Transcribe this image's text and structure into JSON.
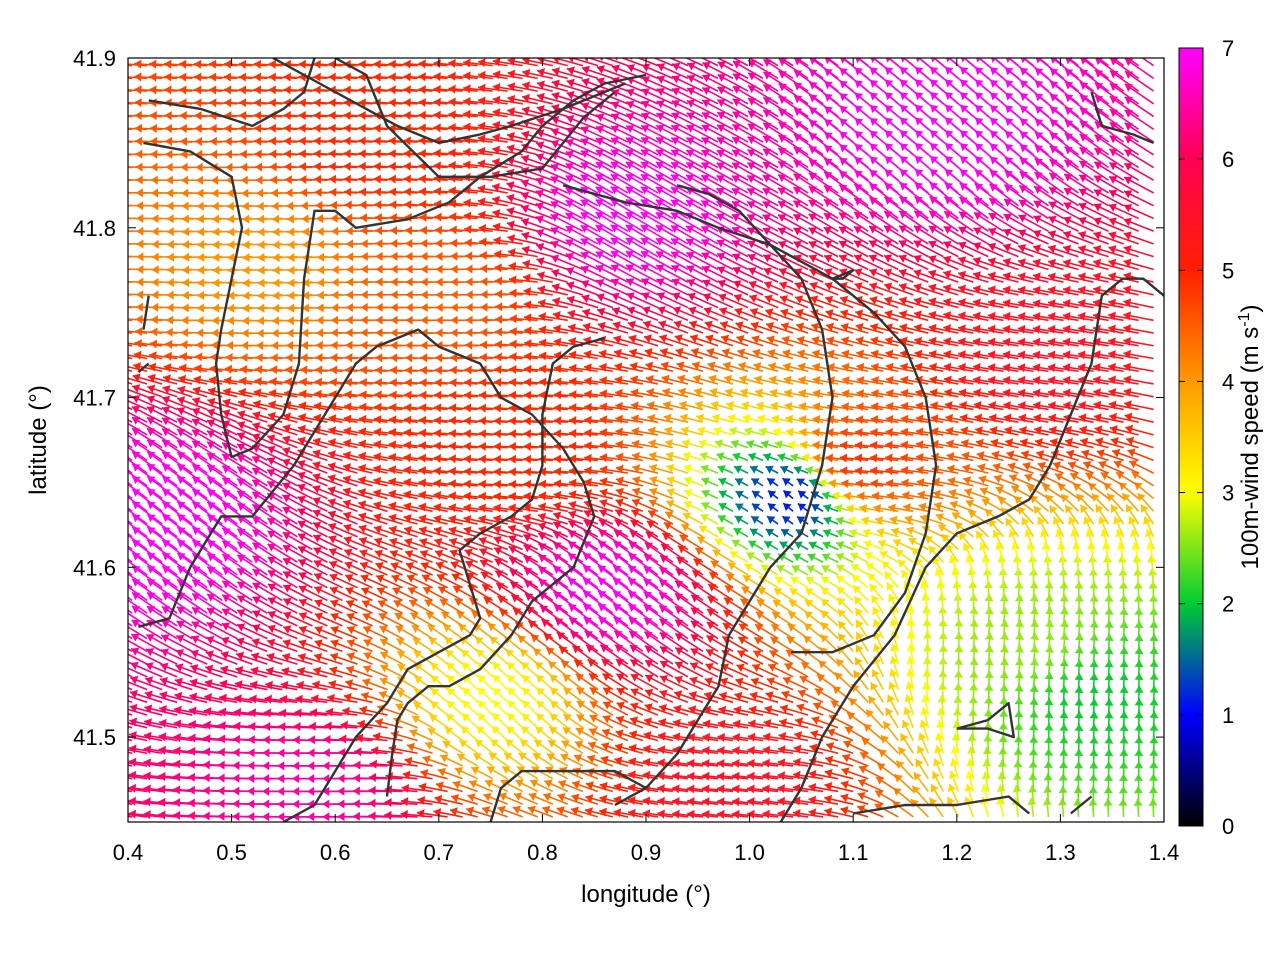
{
  "chart_data": {
    "type": "vector-field",
    "xlabel": "longitude (°)",
    "ylabel": "latitude (°)",
    "xlim": [
      0.4,
      1.4
    ],
    "ylim": [
      41.45,
      41.9
    ],
    "xticks": [
      "0.4",
      "0.5",
      "0.6",
      "0.7",
      "0.8",
      "0.9",
      "1.0",
      "1.1",
      "1.2",
      "1.3",
      "1.4"
    ],
    "yticks": [
      "41.5",
      "41.6",
      "41.7",
      "41.8",
      "41.9"
    ],
    "colorbar": {
      "label_main": "100m-wind speed (m s",
      "label_sup": "-1",
      "label_end": ")",
      "range": [
        0,
        7
      ],
      "ticks": [
        "0",
        "1",
        "2",
        "3",
        "4",
        "5",
        "6",
        "7"
      ],
      "stops": [
        "#000000",
        "#0000ff",
        "#00cc33",
        "#ffff00",
        "#ff9900",
        "#ff0000",
        "#ff00ff"
      ]
    },
    "wind_regions": [
      {
        "lon": 0.65,
        "lat": 41.85,
        "u": -1.0,
        "v": 0.05,
        "speed": 5.0
      },
      {
        "lon": 0.72,
        "lat": 41.76,
        "u": -1.0,
        "v": 0.0,
        "speed": 4.5
      },
      {
        "lon": 0.55,
        "lat": 41.78,
        "u": -1.0,
        "v": -0.05,
        "speed": 4.0
      },
      {
        "lon": 0.45,
        "lat": 41.62,
        "u": -0.8,
        "v": 0.6,
        "speed": 7.0
      },
      {
        "lon": 0.88,
        "lat": 41.58,
        "u": -0.8,
        "v": 0.6,
        "speed": 7.0
      },
      {
        "lon": 1.2,
        "lat": 41.85,
        "u": -0.75,
        "v": 0.65,
        "speed": 7.0
      },
      {
        "lon": 0.9,
        "lat": 41.8,
        "u": -0.85,
        "v": 0.5,
        "speed": 7.0
      },
      {
        "lon": 1.05,
        "lat": 41.64,
        "u": -0.1,
        "v": 0.1,
        "speed": 1.0
      },
      {
        "lon": 1.12,
        "lat": 41.66,
        "u": -1.0,
        "v": 0.1,
        "speed": 5.0
      },
      {
        "lon": 1.27,
        "lat": 41.55,
        "u": 0.1,
        "v": 1.0,
        "speed": 2.6
      },
      {
        "lon": 1.33,
        "lat": 41.52,
        "u": 0.05,
        "v": 1.0,
        "speed": 2.0
      },
      {
        "lon": 1.3,
        "lat": 41.72,
        "u": -1.0,
        "v": 0.15,
        "speed": 5.5
      },
      {
        "lon": 0.6,
        "lat": 41.47,
        "u": -1.0,
        "v": 0.0,
        "speed": 6.5
      },
      {
        "lon": 1.0,
        "lat": 41.47,
        "u": -1.0,
        "v": 0.1,
        "speed": 5.5
      },
      {
        "lon": 0.8,
        "lat": 41.67,
        "u": -1.0,
        "v": 0.05,
        "speed": 5.0
      },
      {
        "lon": 0.76,
        "lat": 41.52,
        "u": -0.3,
        "v": 0.3,
        "speed": 3.0
      }
    ],
    "contours": [
      [
        [
          0.42,
          41.875
        ],
        [
          0.47,
          41.87
        ],
        [
          0.52,
          41.86
        ],
        [
          0.55,
          41.87
        ],
        [
          0.57,
          41.88
        ],
        [
          0.58,
          41.9
        ]
      ],
      [
        [
          0.415,
          41.85
        ],
        [
          0.46,
          41.845
        ],
        [
          0.5,
          41.83
        ],
        [
          0.51,
          41.8
        ],
        [
          0.5,
          41.77
        ],
        [
          0.49,
          41.74
        ],
        [
          0.485,
          41.72
        ],
        [
          0.49,
          41.69
        ],
        [
          0.5,
          41.665
        ],
        [
          0.52,
          41.67
        ],
        [
          0.55,
          41.69
        ],
        [
          0.565,
          41.72
        ],
        [
          0.57,
          41.77
        ],
        [
          0.58,
          41.81
        ],
        [
          0.6,
          41.81
        ],
        [
          0.62,
          41.8
        ],
        [
          0.67,
          41.805
        ],
        [
          0.71,
          41.815
        ],
        [
          0.74,
          41.83
        ],
        [
          0.78,
          41.845
        ],
        [
          0.8,
          41.86
        ],
        [
          0.83,
          41.875
        ],
        [
          0.86,
          41.885
        ],
        [
          0.9,
          41.89
        ]
      ],
      [
        [
          0.6,
          41.9
        ],
        [
          0.63,
          41.89
        ],
        [
          0.65,
          41.86
        ],
        [
          0.7,
          41.83
        ],
        [
          0.75,
          41.83
        ],
        [
          0.8,
          41.835
        ],
        [
          0.82,
          41.85
        ],
        [
          0.84,
          41.865
        ],
        [
          0.87,
          41.88
        ]
      ],
      [
        [
          0.41,
          41.715
        ],
        [
          0.42,
          41.72
        ]
      ],
      [
        [
          0.415,
          41.74
        ],
        [
          0.42,
          41.76
        ]
      ],
      [
        [
          0.54,
          41.9
        ],
        [
          0.6,
          41.88
        ],
        [
          0.66,
          41.86
        ],
        [
          0.7,
          41.85
        ],
        [
          0.74,
          41.855
        ],
        [
          0.77,
          41.86
        ],
        [
          0.82,
          41.87
        ],
        [
          0.88,
          41.885
        ]
      ],
      [
        [
          0.82,
          41.825
        ],
        [
          0.85,
          41.82
        ],
        [
          0.88,
          41.815
        ],
        [
          0.93,
          41.81
        ],
        [
          0.97,
          41.8
        ],
        [
          1.02,
          41.79
        ],
        [
          1.08,
          41.77
        ],
        [
          1.12,
          41.75
        ],
        [
          1.15,
          41.73
        ],
        [
          1.17,
          41.7
        ],
        [
          1.18,
          41.66
        ],
        [
          1.17,
          41.62
        ],
        [
          1.15,
          41.585
        ],
        [
          1.12,
          41.56
        ],
        [
          1.08,
          41.55
        ],
        [
          1.04,
          41.55
        ]
      ],
      [
        [
          0.41,
          41.565
        ],
        [
          0.44,
          41.57
        ],
        [
          0.46,
          41.6
        ],
        [
          0.49,
          41.63
        ],
        [
          0.52,
          41.63
        ],
        [
          0.56,
          41.66
        ],
        [
          0.6,
          41.7
        ],
        [
          0.62,
          41.72
        ],
        [
          0.64,
          41.73
        ],
        [
          0.68,
          41.74
        ],
        [
          0.7,
          41.73
        ],
        [
          0.74,
          41.72
        ],
        [
          0.76,
          41.7
        ],
        [
          0.79,
          41.69
        ],
        [
          0.82,
          41.67
        ],
        [
          0.84,
          41.65
        ],
        [
          0.85,
          41.63
        ],
        [
          0.83,
          41.6
        ],
        [
          0.79,
          41.58
        ],
        [
          0.77,
          41.56
        ],
        [
          0.74,
          41.54
        ],
        [
          0.71,
          41.53
        ],
        [
          0.69,
          41.53
        ],
        [
          0.67,
          41.52
        ],
        [
          0.66,
          41.51
        ],
        [
          0.655,
          41.49
        ],
        [
          0.65,
          41.465
        ]
      ],
      [
        [
          0.55,
          41.45
        ],
        [
          0.58,
          41.46
        ],
        [
          0.6,
          41.48
        ],
        [
          0.62,
          41.5
        ],
        [
          0.65,
          41.52
        ],
        [
          0.67,
          41.54
        ],
        [
          0.7,
          41.55
        ],
        [
          0.73,
          41.56
        ],
        [
          0.74,
          41.57
        ],
        [
          0.73,
          41.59
        ],
        [
          0.72,
          41.61
        ],
        [
          0.74,
          41.62
        ],
        [
          0.77,
          41.63
        ],
        [
          0.79,
          41.64
        ],
        [
          0.8,
          41.66
        ],
        [
          0.8,
          41.69
        ],
        [
          0.81,
          41.72
        ],
        [
          0.83,
          41.73
        ],
        [
          0.86,
          41.735
        ]
      ],
      [
        [
          0.87,
          41.46
        ],
        [
          0.9,
          41.47
        ],
        [
          0.93,
          41.49
        ],
        [
          0.95,
          41.51
        ],
        [
          0.97,
          41.53
        ],
        [
          0.98,
          41.56
        ],
        [
          1.0,
          41.58
        ],
        [
          1.02,
          41.6
        ],
        [
          1.05,
          41.62
        ],
        [
          1.07,
          41.66
        ],
        [
          1.08,
          41.7
        ],
        [
          1.07,
          41.74
        ],
        [
          1.05,
          41.77
        ],
        [
          1.02,
          41.79
        ],
        [
          0.99,
          41.81
        ],
        [
          0.96,
          41.82
        ],
        [
          0.93,
          41.825
        ]
      ],
      [
        [
          1.03,
          41.45
        ],
        [
          1.05,
          41.47
        ],
        [
          1.07,
          41.5
        ],
        [
          1.1,
          41.53
        ],
        [
          1.14,
          41.56
        ],
        [
          1.17,
          41.6
        ],
        [
          1.2,
          41.62
        ],
        [
          1.24,
          41.63
        ],
        [
          1.27,
          41.64
        ],
        [
          1.29,
          41.66
        ],
        [
          1.31,
          41.69
        ],
        [
          1.33,
          41.72
        ],
        [
          1.34,
          41.76
        ],
        [
          1.36,
          41.77
        ],
        [
          1.38,
          41.77
        ],
        [
          1.4,
          41.76
        ]
      ],
      [
        [
          1.08,
          41.77
        ],
        [
          1.1,
          41.775
        ],
        [
          1.09,
          41.77
        ],
        [
          1.08,
          41.77
        ]
      ],
      [
        [
          1.2,
          41.505
        ],
        [
          1.23,
          41.51
        ],
        [
          1.25,
          41.52
        ],
        [
          1.255,
          41.5
        ],
        [
          1.23,
          41.505
        ],
        [
          1.2,
          41.505
        ]
      ],
      [
        [
          1.1,
          41.455
        ],
        [
          1.15,
          41.46
        ],
        [
          1.2,
          41.46
        ],
        [
          1.25,
          41.465
        ],
        [
          1.27,
          41.455
        ]
      ],
      [
        [
          0.75,
          41.45
        ],
        [
          0.76,
          41.47
        ],
        [
          0.78,
          41.48
        ],
        [
          0.82,
          41.48
        ],
        [
          0.87,
          41.48
        ],
        [
          0.9,
          41.47
        ]
      ],
      [
        [
          1.33,
          41.88
        ],
        [
          1.34,
          41.86
        ],
        [
          1.37,
          41.855
        ],
        [
          1.39,
          41.85
        ]
      ],
      [
        [
          1.31,
          41.455
        ],
        [
          1.33,
          41.465
        ]
      ]
    ]
  }
}
